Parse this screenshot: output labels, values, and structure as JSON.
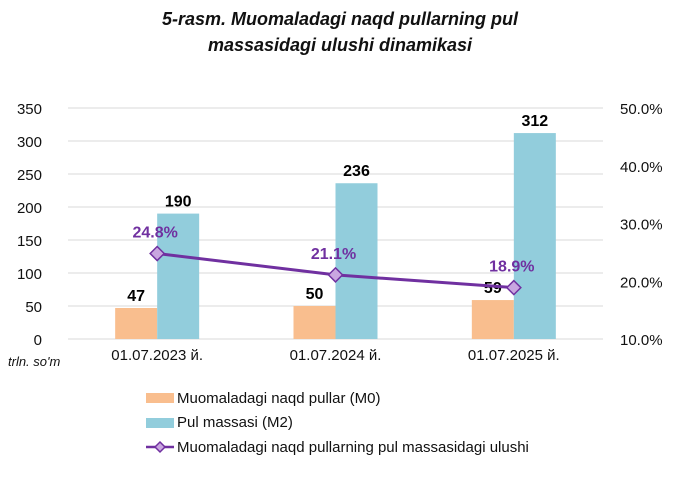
{
  "chart_data": {
    "type": "bar+line",
    "title": "5-rasm. Muomaladagi naqd pullarning pul massasidagi ulushi dinamikasi",
    "unit_label": "trln. so'm",
    "categories": [
      "01.07.2023 й.",
      "01.07.2024 й.",
      "01.07.2025 й."
    ],
    "series": [
      {
        "name": "Muomaladagi naqd pullar (M0)",
        "type": "bar",
        "axis": "left",
        "color": "#F9BE8E",
        "values": [
          47,
          50,
          59
        ],
        "labels": [
          "47",
          "50",
          "59"
        ]
      },
      {
        "name": "Pul massasi (M2)",
        "type": "bar",
        "axis": "left",
        "color": "#92CDDC",
        "values": [
          190,
          236,
          312
        ],
        "labels": [
          "190",
          "236",
          "312"
        ]
      },
      {
        "name": "Muomaladagi naqd pullarning pul massasidagi ulushi",
        "type": "line",
        "axis": "right",
        "color": "#7030A0",
        "marker": "diamond",
        "values": [
          24.8,
          21.1,
          18.9
        ],
        "labels": [
          "24.8%",
          "21.1%",
          "18.9%"
        ]
      }
    ],
    "ylim": [
      0,
      350
    ],
    "yticks": [
      "0",
      "50",
      "100",
      "150",
      "200",
      "250",
      "300",
      "350"
    ],
    "y2lim": [
      10,
      50
    ],
    "y2ticks": [
      "10.0%",
      "20.0%",
      "30.0%",
      "40.0%",
      "50.0%"
    ],
    "grid": true,
    "legend_position": "bottom"
  }
}
